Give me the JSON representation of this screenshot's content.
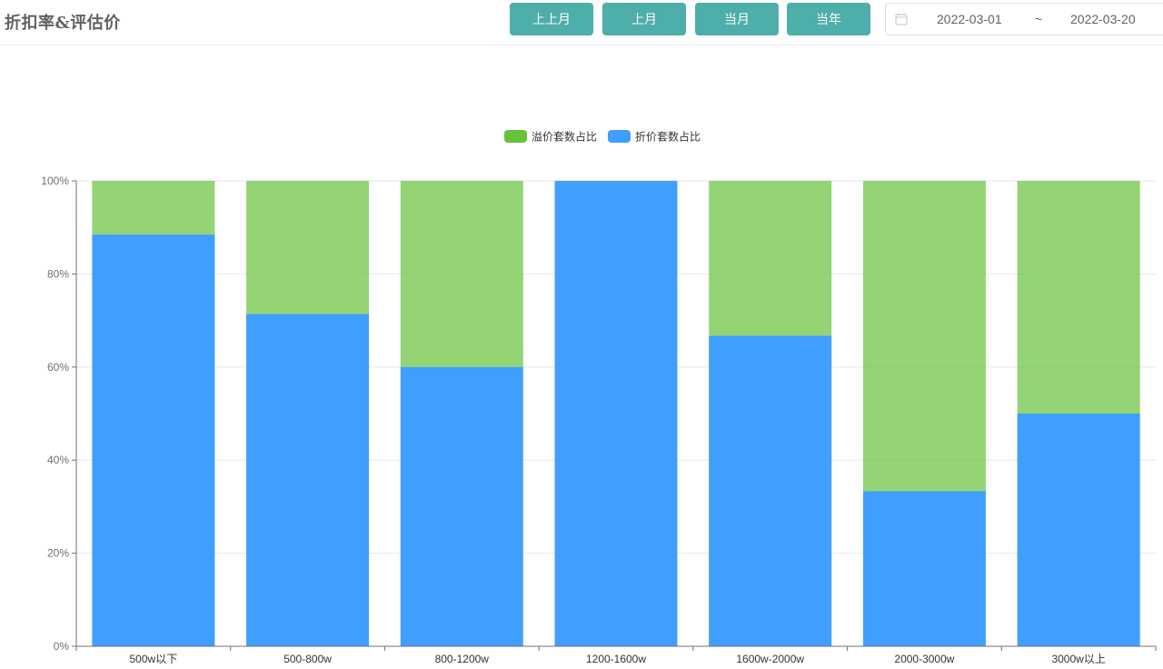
{
  "header": {
    "title": "折扣率&评估价",
    "buttons": [
      {
        "label": "上上月"
      },
      {
        "label": "上月"
      },
      {
        "label": "当月"
      },
      {
        "label": "当年"
      }
    ],
    "date_range": {
      "start": "2022-03-01",
      "separator": "~",
      "end": "2022-03-20",
      "icon": "calendar-icon"
    }
  },
  "colors": {
    "button_bg": "#4eaea9",
    "premium": "#67c23a",
    "discount": "#409eff"
  },
  "chart_data": {
    "type": "bar",
    "stacked": true,
    "categories": [
      "500w以下",
      "500-800w",
      "800-1200w",
      "1200-1600w",
      "1600w-2000w",
      "2000-3000w",
      "3000w以上"
    ],
    "series": [
      {
        "name": "折价套数占比",
        "color": "#409eff",
        "values": [
          88.5,
          71.4,
          60,
          100,
          66.7,
          33.3,
          50
        ]
      },
      {
        "name": "溢价套数占比",
        "color": "#67c23a",
        "values": [
          11.5,
          28.6,
          40,
          0,
          33.3,
          66.7,
          50
        ]
      }
    ],
    "legend": [
      "溢价套数占比",
      "折价套数占比"
    ],
    "legend_position": "top-center",
    "y_ticks": [
      "0%",
      "20%",
      "40%",
      "60%",
      "80%",
      "100%"
    ],
    "ylim": [
      0,
      100
    ],
    "grid": true
  }
}
